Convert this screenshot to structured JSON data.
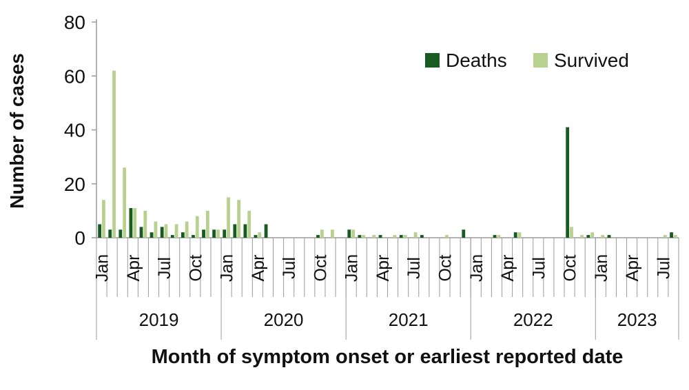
{
  "chart_data": {
    "type": "bar",
    "title": "",
    "xlabel": "Month of symptom onset or earliest reported date",
    "ylabel": "Number of cases",
    "ylim": [
      0,
      80
    ],
    "yticks": [
      0,
      20,
      40,
      60,
      80
    ],
    "grid": false,
    "legend_position": "top-right",
    "month_tick_labels": [
      "Jan",
      "Apr",
      "Jul",
      "Oct"
    ],
    "years": [
      {
        "label": "2019",
        "months": 12
      },
      {
        "label": "2020",
        "months": 12
      },
      {
        "label": "2021",
        "months": 12
      },
      {
        "label": "2022",
        "months": 12
      },
      {
        "label": "2023",
        "months": 8
      }
    ],
    "categories": [
      "Jan 2019",
      "Feb 2019",
      "Mar 2019",
      "Apr 2019",
      "May 2019",
      "Jun 2019",
      "Jul 2019",
      "Aug 2019",
      "Sep 2019",
      "Oct 2019",
      "Nov 2019",
      "Dec 2019",
      "Jan 2020",
      "Feb 2020",
      "Mar 2020",
      "Apr 2020",
      "May 2020",
      "Jun 2020",
      "Jul 2020",
      "Aug 2020",
      "Sep 2020",
      "Oct 2020",
      "Nov 2020",
      "Dec 2020",
      "Jan 2021",
      "Feb 2021",
      "Mar 2021",
      "Apr 2021",
      "May 2021",
      "Jun 2021",
      "Jul 2021",
      "Aug 2021",
      "Sep 2021",
      "Oct 2021",
      "Nov 2021",
      "Dec 2021",
      "Jan 2022",
      "Feb 2022",
      "Mar 2022",
      "Apr 2022",
      "May 2022",
      "Jun 2022",
      "Jul 2022",
      "Aug 2022",
      "Sep 2022",
      "Oct 2022",
      "Nov 2022",
      "Dec 2022",
      "Jan 2023",
      "Feb 2023",
      "Mar 2023",
      "Apr 2023",
      "May 2023",
      "Jun 2023",
      "Jul 2023",
      "Aug 2023"
    ],
    "series": [
      {
        "name": "Deaths",
        "color": "#175b21",
        "values": [
          5,
          3,
          3,
          11,
          4,
          2,
          4,
          1,
          2,
          1,
          3,
          3,
          3,
          5,
          5,
          1,
          5,
          0,
          0,
          0,
          0,
          1,
          0,
          0,
          3,
          1,
          0,
          1,
          0,
          1,
          0,
          1,
          0,
          0,
          0,
          3,
          0,
          0,
          1,
          0,
          2,
          0,
          0,
          0,
          0,
          41,
          0,
          1,
          0,
          1,
          0,
          0,
          0,
          0,
          0,
          2
        ]
      },
      {
        "name": "Survived",
        "color": "#b9d18f",
        "values": [
          14,
          62,
          26,
          11,
          10,
          6,
          5,
          5,
          6,
          8,
          10,
          3,
          15,
          14,
          10,
          2,
          0,
          0,
          0,
          0,
          0,
          3,
          3,
          0,
          3,
          1,
          1,
          0,
          1,
          1,
          2,
          0,
          0,
          1,
          0,
          0,
          0,
          0,
          1,
          0,
          2,
          0,
          0,
          0,
          0,
          4,
          1,
          2,
          1,
          0,
          0,
          0,
          0,
          0,
          1,
          1
        ]
      }
    ]
  }
}
